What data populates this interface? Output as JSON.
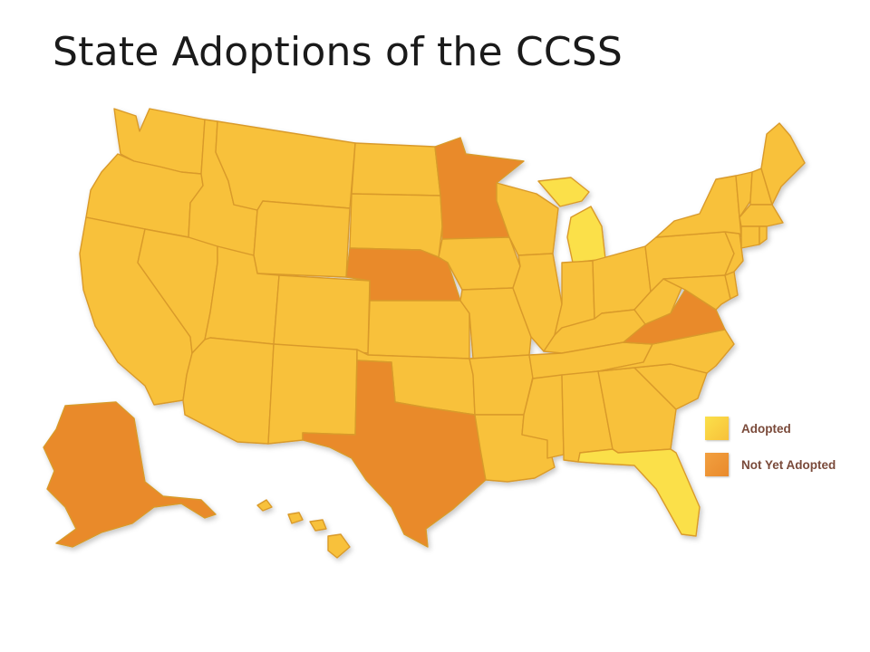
{
  "title": "State Adoptions of the CCSS",
  "legend": {
    "adopted": {
      "label": "Adopted",
      "color": "#f8c13a"
    },
    "not_adopted": {
      "label": "Not Yet Adopted",
      "color": "#e98a2c"
    }
  },
  "map": {
    "border_color": "#d99a2a",
    "highlight_color": "#fbe04a",
    "not_yet_adopted_states": [
      "Alaska",
      "Texas",
      "Nebraska",
      "Minnesota",
      "Virginia"
    ],
    "adopted_states": [
      "Washington",
      "Oregon",
      "California",
      "Idaho",
      "Nevada",
      "Montana",
      "Wyoming",
      "Utah",
      "Arizona",
      "Colorado",
      "New Mexico",
      "North Dakota",
      "South Dakota",
      "Kansas",
      "Oklahoma",
      "Iowa",
      "Missouri",
      "Arkansas",
      "Louisiana",
      "Wisconsin",
      "Illinois",
      "Michigan",
      "Indiana",
      "Ohio",
      "Kentucky",
      "Tennessee",
      "Mississippi",
      "Alabama",
      "Georgia",
      "Florida",
      "South Carolina",
      "North Carolina",
      "West Virginia",
      "Pennsylvania",
      "New York",
      "Vermont",
      "New Hampshire",
      "Maine",
      "Massachusetts",
      "Connecticut",
      "Rhode Island",
      "New Jersey",
      "Delaware",
      "Maryland",
      "Hawaii"
    ]
  }
}
